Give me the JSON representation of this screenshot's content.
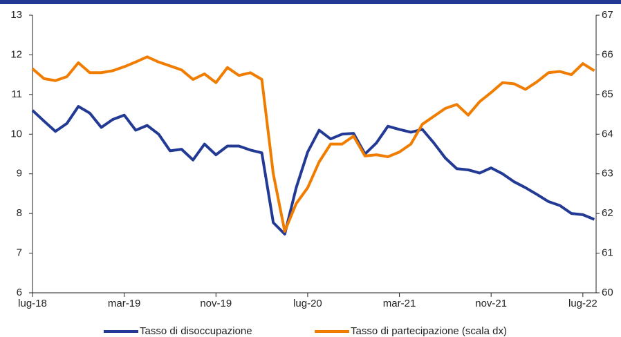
{
  "chart_data": {
    "type": "line",
    "categories": [
      "lug-18",
      null,
      null,
      null,
      null,
      null,
      null,
      null,
      "mar-19",
      null,
      null,
      null,
      null,
      null,
      null,
      null,
      "nov-19",
      null,
      null,
      null,
      null,
      null,
      null,
      null,
      "lug-20",
      null,
      null,
      null,
      null,
      null,
      null,
      null,
      "mar-21",
      null,
      null,
      null,
      null,
      null,
      null,
      null,
      "nov-21",
      null,
      null,
      null,
      null,
      null,
      null,
      null,
      "lug-22",
      null
    ],
    "series": [
      {
        "name": "Tasso di disoccupazione",
        "color": "#233a94",
        "axis": "y",
        "values": [
          10.6,
          10.33,
          10.07,
          10.27,
          10.7,
          10.53,
          10.17,
          10.37,
          10.48,
          10.1,
          10.22,
          10.0,
          9.58,
          9.62,
          9.35,
          9.75,
          9.48,
          9.7,
          9.7,
          9.6,
          9.53,
          7.77,
          7.48,
          8.65,
          9.55,
          10.1,
          9.88,
          10.0,
          10.02,
          9.5,
          9.78,
          10.2,
          10.12,
          10.05,
          10.12,
          9.78,
          9.4,
          9.13,
          9.1,
          9.02,
          9.15,
          9.0,
          8.8,
          8.65,
          8.48,
          8.3,
          8.2,
          8.0,
          7.97,
          7.85
        ]
      },
      {
        "name": "Tasso di partecipazione (scala dx)",
        "color": "#f07d00",
        "axis": "y2",
        "values": [
          65.65,
          65.4,
          65.35,
          65.45,
          65.8,
          65.55,
          65.55,
          65.6,
          65.7,
          65.82,
          65.95,
          65.82,
          65.72,
          65.62,
          65.38,
          65.52,
          65.3,
          65.68,
          65.48,
          65.55,
          65.38,
          63.0,
          61.55,
          62.25,
          62.65,
          63.3,
          63.75,
          63.75,
          63.95,
          63.45,
          63.48,
          63.43,
          63.55,
          63.75,
          64.25,
          64.45,
          64.65,
          64.75,
          64.48,
          64.82,
          65.05,
          65.3,
          65.27,
          65.13,
          65.32,
          65.55,
          65.58,
          65.5,
          65.78,
          65.6
        ]
      }
    ],
    "ylim": [
      6,
      13
    ],
    "yticks": [
      6,
      7,
      8,
      9,
      10,
      11,
      12,
      13
    ],
    "y2lim": [
      60,
      67
    ],
    "y2ticks": [
      60,
      61,
      62,
      63,
      64,
      65,
      66,
      67
    ],
    "grid": false,
    "legend": "bottom"
  }
}
